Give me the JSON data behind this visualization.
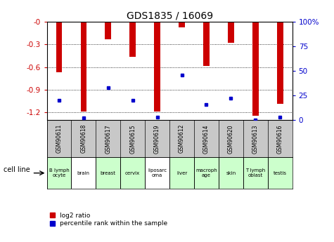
{
  "title": "GDS1835 / 16069",
  "samples": [
    "GSM90611",
    "GSM90618",
    "GSM90617",
    "GSM90615",
    "GSM90619",
    "GSM90612",
    "GSM90614",
    "GSM90620",
    "GSM90613",
    "GSM90616"
  ],
  "cell_lines": [
    "B lymph\nocyte",
    "brain",
    "breast",
    "cervix",
    "liposarc\noma",
    "liver",
    "macroph\nage",
    "skin",
    "T lymph\noblast",
    "testis"
  ],
  "cell_line_colors": [
    "#ccffcc",
    "#ffffff",
    "#ccffcc",
    "#ccffcc",
    "#ffffff",
    "#ccffcc",
    "#ccffcc",
    "#ccffcc",
    "#ccffcc",
    "#ccffcc"
  ],
  "log2_ratio": [
    -0.67,
    -1.19,
    -0.23,
    -0.46,
    -1.19,
    -0.07,
    -0.58,
    -0.28,
    -1.24,
    -1.08
  ],
  "percentile_rank": [
    20,
    2,
    33,
    20,
    3,
    46,
    16,
    22,
    0,
    3
  ],
  "ylim_left": [
    -1.3,
    0.0
  ],
  "ylim_right": [
    0,
    100
  ],
  "ylabel_left_color": "#cc0000",
  "ylabel_right_color": "#0000cc",
  "yticks_left": [
    0,
    -0.3,
    -0.6,
    -0.9,
    -1.2
  ],
  "ytick_labels_left": [
    "-0",
    "-0.3",
    "-0.6",
    "-0.9",
    "-1.2"
  ],
  "yticks_right": [
    0,
    25,
    50,
    75,
    100
  ],
  "ytick_labels_right": [
    "0",
    "25",
    "50",
    "75",
    "100%"
  ],
  "bar_color_red": "#cc0000",
  "bar_color_blue": "#0000cc",
  "bar_width": 0.25,
  "plot_bg_color": "#ffffff",
  "gsm_bg_color": "#c8c8c8",
  "legend_red": "log2 ratio",
  "legend_blue": "percentile rank within the sample",
  "cell_line_label": "cell line"
}
